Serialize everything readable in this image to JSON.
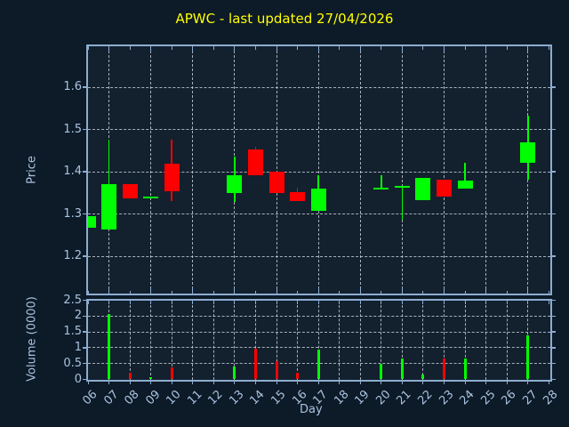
{
  "window": {
    "title": "APWC - last updated 27/04/2026"
  },
  "colors": {
    "figure_bg": "#0d1a27",
    "axes_bg": "#13202e",
    "spine": "#8cadd1",
    "grid": "#cdd4dc",
    "tick_label": "#a9c3e1",
    "title": "#ffff00",
    "up": "#00ff00",
    "down": "#ff0000"
  },
  "price_axis": {
    "label": "Price",
    "tick_labels": [
      "1.2",
      "1.3",
      "1.4",
      "1.5",
      "1.6"
    ],
    "tick_values": [
      1.2,
      1.3,
      1.4,
      1.5,
      1.6
    ]
  },
  "volume_axis": {
    "label": "Volume (0000)",
    "tick_labels": [
      "0",
      "0.5",
      "1",
      "1.5",
      "2",
      "2.5"
    ],
    "tick_values": [
      0,
      0.5,
      1,
      1.5,
      2,
      2.5
    ]
  },
  "x_axis": {
    "label": "Day",
    "tick_labels": [
      "06",
      "07",
      "08",
      "09",
      "10",
      "11",
      "12",
      "13",
      "14",
      "15",
      "16",
      "17",
      "18",
      "19",
      "20",
      "21",
      "22",
      "23",
      "24",
      "25",
      "26",
      "27",
      "28"
    ],
    "tick_values": [
      6,
      7,
      8,
      9,
      10,
      11,
      12,
      13,
      14,
      15,
      16,
      17,
      18,
      19,
      20,
      21,
      22,
      23,
      24,
      25,
      26,
      27,
      28
    ]
  },
  "chart_data": {
    "type": "candlestick",
    "title": "APWC - last updated 27/04/2026",
    "xlabel": "Day",
    "ylabel_price": "Price",
    "ylabel_volume": "Volume (0000)",
    "x_days": [
      6,
      7,
      8,
      9,
      10,
      13,
      14,
      15,
      16,
      17,
      20,
      21,
      22,
      23,
      24,
      27
    ],
    "series": [
      {
        "name": "open",
        "values": [
          1.267,
          1.263,
          1.371,
          1.34,
          1.42,
          1.349,
          1.453,
          1.401,
          1.352,
          1.308,
          1.359,
          1.364,
          1.332,
          1.382,
          1.359,
          1.422
        ]
      },
      {
        "name": "high",
        "values": [
          1.294,
          1.476,
          1.371,
          1.34,
          1.476,
          1.435,
          1.458,
          1.401,
          1.363,
          1.391,
          1.391,
          1.364,
          1.386,
          1.382,
          1.422,
          1.533
        ]
      },
      {
        "name": "low",
        "values": [
          1.267,
          1.263,
          1.337,
          1.34,
          1.331,
          1.329,
          1.391,
          1.349,
          1.33,
          1.308,
          1.359,
          1.287,
          1.332,
          1.34,
          1.359,
          1.38
        ]
      },
      {
        "name": "close",
        "values": [
          1.294,
          1.371,
          1.337,
          1.34,
          1.354,
          1.391,
          1.391,
          1.349,
          1.33,
          1.361,
          1.359,
          1.364,
          1.386,
          1.34,
          1.378,
          1.469
        ]
      },
      {
        "name": "volume_0000",
        "values": [
          0,
          2.07,
          0.21,
          0.07,
          0.38,
          0.41,
          0.97,
          0.58,
          0.21,
          0.95,
          0.49,
          0.66,
          0.15,
          0.66,
          0.66,
          1.39
        ]
      }
    ],
    "price_ylim": [
      1.11,
      1.7
    ],
    "volume_ylim": [
      0,
      2.5
    ],
    "x_range": [
      6,
      28.07
    ],
    "grid": true,
    "legend_position": "none"
  }
}
